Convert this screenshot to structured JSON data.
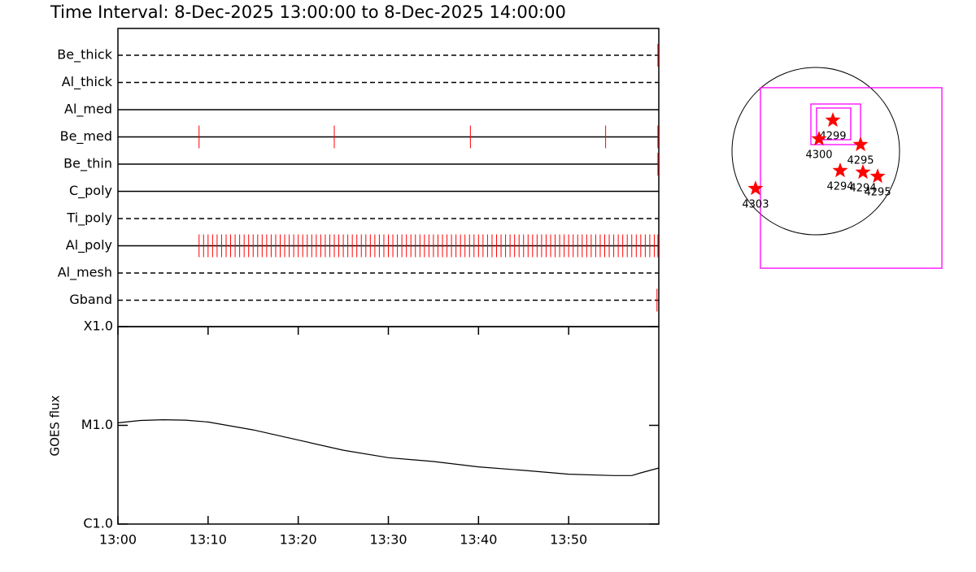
{
  "chart_data": [
    {
      "type": "timeline",
      "title": "Time Interval:  8-Dec-2025 13:00:00 to  8-Dec-2025 14:00:00",
      "xlim": [
        0,
        60
      ],
      "event_color": "#ff0000",
      "line_color": "#000000",
      "filters": [
        {
          "name": "Be_thick",
          "line": "dashed",
          "events": [
            59.9
          ]
        },
        {
          "name": "Al_thick",
          "line": "dashed",
          "events": []
        },
        {
          "name": "Al_med",
          "line": "solid",
          "events": []
        },
        {
          "name": "Be_med",
          "line": "solid",
          "events": [
            9,
            24,
            39.1,
            54.1,
            59.9
          ]
        },
        {
          "name": "Be_thin",
          "line": "solid",
          "events": [
            59.9
          ]
        },
        {
          "name": "C_poly",
          "line": "solid",
          "events": []
        },
        {
          "name": "Ti_poly",
          "line": "dashed",
          "events": []
        },
        {
          "name": "Al_poly",
          "line": "solid",
          "events": [
            9,
            9.5,
            10,
            10.5,
            11,
            11.5,
            12,
            12.5,
            13,
            13.5,
            14,
            14.5,
            15,
            15.5,
            16,
            16.5,
            17,
            17.5,
            18,
            18.5,
            19,
            19.5,
            20,
            20.5,
            21,
            21.5,
            22,
            22.5,
            23,
            23.5,
            24,
            24.5,
            25,
            25.5,
            26,
            26.5,
            27,
            27.5,
            28,
            28.5,
            29,
            29.5,
            30,
            30.5,
            31,
            31.5,
            32,
            32.5,
            33,
            33.5,
            34,
            34.5,
            35,
            35.5,
            36,
            36.5,
            37,
            37.5,
            38,
            38.5,
            39,
            39.5,
            40,
            40.5,
            41,
            41.5,
            42,
            42.5,
            43,
            43.5,
            44,
            44.5,
            45,
            45.5,
            46,
            46.5,
            47,
            47.5,
            48,
            48.5,
            49,
            49.5,
            50,
            50.5,
            51,
            51.5,
            52,
            52.5,
            53,
            53.5,
            54,
            54.5,
            55,
            55.5,
            56,
            56.5,
            57,
            57.5,
            58,
            58.5,
            59,
            59.5,
            59.9
          ]
        },
        {
          "name": "Al_mesh",
          "line": "dashed",
          "events": []
        },
        {
          "name": "Gband",
          "line": "dashed",
          "events": [
            59.8
          ]
        }
      ]
    },
    {
      "type": "line",
      "ylabel": "GOES flux",
      "log_scale": true,
      "color": "#000000",
      "xlim": [
        0,
        60
      ],
      "xticks": [
        {
          "value": 0,
          "label": "13:00"
        },
        {
          "value": 10,
          "label": "13:10"
        },
        {
          "value": 20,
          "label": "13:20"
        },
        {
          "value": 30,
          "label": "13:30"
        },
        {
          "value": 40,
          "label": "13:40"
        },
        {
          "value": 50,
          "label": "13:50"
        }
      ],
      "ylim": [
        1e-06,
        0.0001
      ],
      "yticks": [
        {
          "value": 1e-06,
          "label": "C1.0"
        },
        {
          "value": 1e-05,
          "label": "M1.0"
        },
        {
          "value": 0.0001,
          "label": "X1.0"
        }
      ],
      "x": [
        0,
        2.5,
        5,
        7.5,
        10,
        15,
        20,
        25,
        30,
        35,
        40,
        45,
        50,
        55,
        57,
        58,
        60
      ],
      "values": [
        1.06e-05,
        1.12e-05,
        1.14e-05,
        1.13e-05,
        1.08e-05,
        9e-06,
        7.1e-06,
        5.6e-06,
        4.7e-06,
        4.3e-06,
        3.8e-06,
        3.5e-06,
        3.2e-06,
        3.1e-06,
        3.1e-06,
        3.3e-06,
        3.7e-06
      ]
    },
    {
      "type": "map",
      "solar_radius": 975,
      "disk_color": "#000000",
      "fov_color": "#ff00ff",
      "star_color": "#ff0000",
      "fov": [
        {
          "xlim": [
            -644,
            1468
          ],
          "ylim": [
            -1364,
            739
          ]
        },
        {
          "xlim": [
            -57,
            521
          ],
          "ylim": [
            76,
            549
          ]
        },
        {
          "xlim": [
            9,
            407
          ],
          "ylim": [
            133,
            502
          ]
        }
      ],
      "regions": [
        {
          "label": "4299",
          "x": 199,
          "y": 360
        },
        {
          "label": "4300",
          "x": 38,
          "y": 142
        },
        {
          "label": "4295",
          "x": 521,
          "y": 76
        },
        {
          "label": "4294",
          "x": 284,
          "y": -227
        },
        {
          "label": "4294",
          "x": 549,
          "y": -246
        },
        {
          "label": "4295",
          "x": 720,
          "y": -294
        },
        {
          "label": "4303",
          "x": -701,
          "y": -436
        }
      ]
    }
  ]
}
